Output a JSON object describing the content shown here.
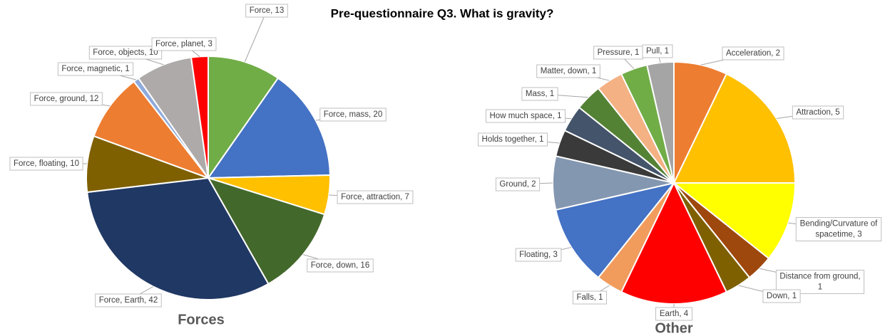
{
  "title": "Pre-questionnaire Q3. What is gravity?",
  "chart_data": [
    {
      "type": "pie",
      "title": "Forces",
      "values": [
        13,
        20,
        7,
        16,
        42,
        10,
        12,
        1,
        10,
        3
      ],
      "value_labels": [
        "Force, 13",
        "Force, mass, 20",
        "Force, attraction, 7",
        "Force, down, 16",
        "Force, Earth, 42",
        "Force, floating, 10",
        "Force, ground, 12",
        "Force, magnetic, 1",
        "Force, objects, 10",
        "Force, planet, 3"
      ],
      "colors": [
        "#70ad47",
        "#4472c4",
        "#ffc000",
        "#43682b",
        "#203864",
        "#7f6000",
        "#ed7d31",
        "#8faadc",
        "#aeaaaa",
        "#ff0000"
      ]
    },
    {
      "type": "pie",
      "title": "Other",
      "values": [
        2,
        5,
        3,
        1,
        1,
        4,
        1,
        3,
        2,
        1,
        1,
        1,
        1,
        1,
        1
      ],
      "value_labels": [
        "Acceleration, 2",
        "Attraction, 5",
        "Bending/Curvature of spacetime, 3",
        "Distance from ground, 1",
        "Down, 1",
        "Earth, 4",
        "Falls, 1",
        "Floating, 3",
        "Ground, 2",
        "Holds together, 1",
        "How much space, 1",
        "Mass, 1",
        "Matter, down, 1",
        "Pressure, 1",
        "Pull, 1"
      ],
      "colors": [
        "#ed7d31",
        "#ffc000",
        "#ffff00",
        "#9e480e",
        "#7f6000",
        "#ff0000",
        "#f19c5c",
        "#4472c4",
        "#8497b0",
        "#3a3a3a",
        "#44546a",
        "#548235",
        "#f4b183",
        "#70ad47",
        "#a5a5a5"
      ]
    }
  ]
}
